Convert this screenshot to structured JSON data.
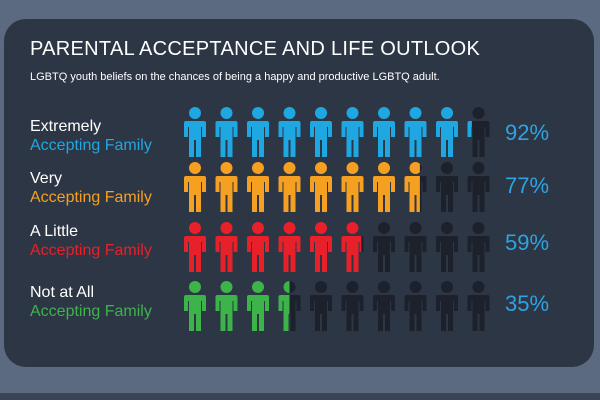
{
  "title": "PARENTAL ACCEPTANCE AND LIFE OUTLOOK",
  "subtitle": "LGBTQ youth beliefs on the chances of being a happy and productive LGBTQ adult.",
  "colors": {
    "background": "#5b6a80",
    "card": "#2d3645",
    "empty_figure": "#1c212b",
    "percent_text": "#2ea3e3"
  },
  "chart_data": {
    "type": "pictograph",
    "icon": "person-icon",
    "figures_per_row": 10,
    "rows": [
      {
        "label_line1": "Extremely",
        "label_line2": "Accepting Family",
        "value": 92,
        "value_label": "92%",
        "color": "#1fa7e1"
      },
      {
        "label_line1": "Very",
        "label_line2": "Accepting Family",
        "value": 77,
        "value_label": "77%",
        "color": "#f5a021"
      },
      {
        "label_line1": "A Little",
        "label_line2": "Accepting Family",
        "value": 59,
        "value_label": "59%",
        "color": "#e8202a"
      },
      {
        "label_line1": "Not at All",
        "label_line2": "Accepting Family",
        "value": 35,
        "value_label": "35%",
        "color": "#3cb44a"
      }
    ]
  }
}
